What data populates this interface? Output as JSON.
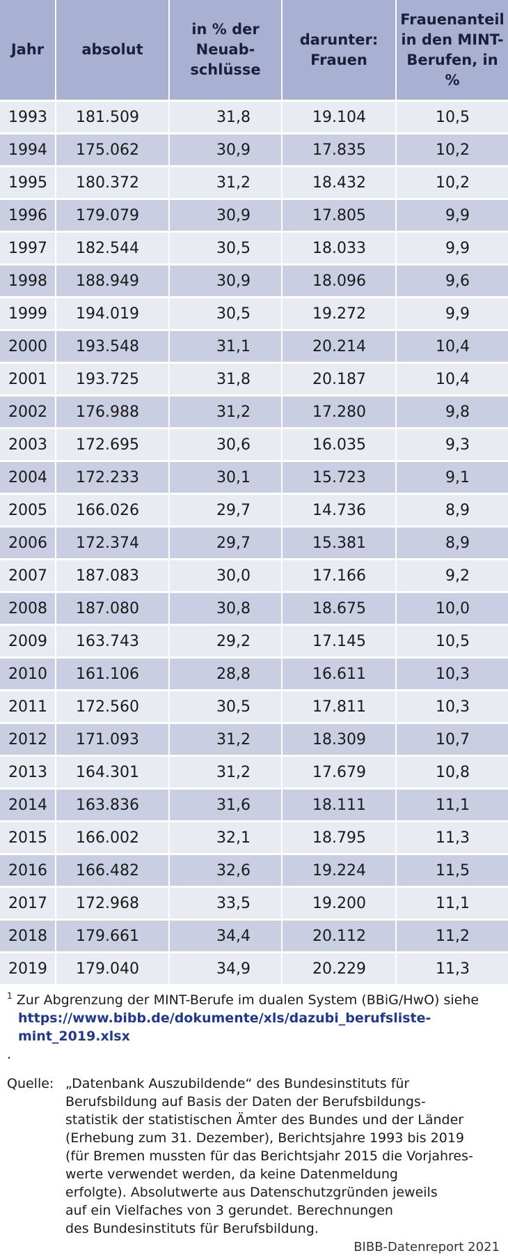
{
  "table": {
    "headers": [
      "Jahr",
      "absolut",
      "in % der\nNeuab-\nschlüsse",
      "darunter:\nFrauen",
      "Frauenanteil\nin den MINT-\nBerufen, in %"
    ],
    "rows": [
      [
        "1993",
        "181.509",
        "31,8",
        "19.104",
        "10,5"
      ],
      [
        "1994",
        "175.062",
        "30,9",
        "17.835",
        "10,2"
      ],
      [
        "1995",
        "180.372",
        "31,2",
        "18.432",
        "10,2"
      ],
      [
        "1996",
        "179.079",
        "30,9",
        "17.805",
        "9,9"
      ],
      [
        "1997",
        "182.544",
        "30,5",
        "18.033",
        "9,9"
      ],
      [
        "1998",
        "188.949",
        "30,9",
        "18.096",
        "9,6"
      ],
      [
        "1999",
        "194.019",
        "30,5",
        "19.272",
        "9,9"
      ],
      [
        "2000",
        "193.548",
        "31,1",
        "20.214",
        "10,4"
      ],
      [
        "2001",
        "193.725",
        "31,8",
        "20.187",
        "10,4"
      ],
      [
        "2002",
        "176.988",
        "31,2",
        "17.280",
        "9,8"
      ],
      [
        "2003",
        "172.695",
        "30,6",
        "16.035",
        "9,3"
      ],
      [
        "2004",
        "172.233",
        "30,1",
        "15.723",
        "9,1"
      ],
      [
        "2005",
        "166.026",
        "29,7",
        "14.736",
        "8,9"
      ],
      [
        "2006",
        "172.374",
        "29,7",
        "15.381",
        "8,9"
      ],
      [
        "2007",
        "187.083",
        "30,0",
        "17.166",
        "9,2"
      ],
      [
        "2008",
        "187.080",
        "30,8",
        "18.675",
        "10,0"
      ],
      [
        "2009",
        "163.743",
        "29,2",
        "17.145",
        "10,5"
      ],
      [
        "2010",
        "161.106",
        "28,8",
        "16.611",
        "10,3"
      ],
      [
        "2011",
        "172.560",
        "30,5",
        "17.811",
        "10,3"
      ],
      [
        "2012",
        "171.093",
        "31,2",
        "18.309",
        "10,7"
      ],
      [
        "2013",
        "164.301",
        "31,2",
        "17.679",
        "10,8"
      ],
      [
        "2014",
        "163.836",
        "31,6",
        "18.111",
        "11,1"
      ],
      [
        "2015",
        "166.002",
        "32,1",
        "18.795",
        "11,3"
      ],
      [
        "2016",
        "166.482",
        "32,6",
        "19.224",
        "11,5"
      ],
      [
        "2017",
        "172.968",
        "33,5",
        "19.200",
        "11,1"
      ],
      [
        "2018",
        "179.661",
        "34,4",
        "20.112",
        "11,2"
      ],
      [
        "2019",
        "179.040",
        "34,9",
        "20.229",
        "11,3"
      ]
    ]
  },
  "footnote": {
    "marker": "1",
    "text": "Zur Abgrenzung der MINT-Berufe im dualen System (BBiG/HwO) siehe",
    "link": "https://www.bibb.de/dokumente/xls/dazubi_berufsliste-mint_2019.xlsx",
    "link_suffix": "."
  },
  "source": {
    "label": "Quelle:",
    "text": "„Datenbank Auszubildende“ des Bundesinstituts für\nBerufsbildung auf Basis der Daten der Berufsbildungs-\nstatistik der statistischen Ämter des Bundes und der Länder\n(Erhebung zum 31. Dezember), Berichtsjahre 1993 bis 2019\n(für Bremen mussten für das Berichtsjahr 2015 die Vorjahres-\nwerte verwendet werden, da keine Datenmeldung\nerfolgte). Absolutwerte aus Datenschutzgründen jeweils\nauf ein Vielfaches von 3 gerundet. Berechnungen\ndes Bundesinstituts für Berufsbildung."
  },
  "credit": "BIBB-Datenreport 2021",
  "colors": {
    "header_bg": "#a9b1d3",
    "row_light": "#e9ebf3",
    "row_dark": "#c9cee3",
    "link": "#1f3a8c"
  }
}
